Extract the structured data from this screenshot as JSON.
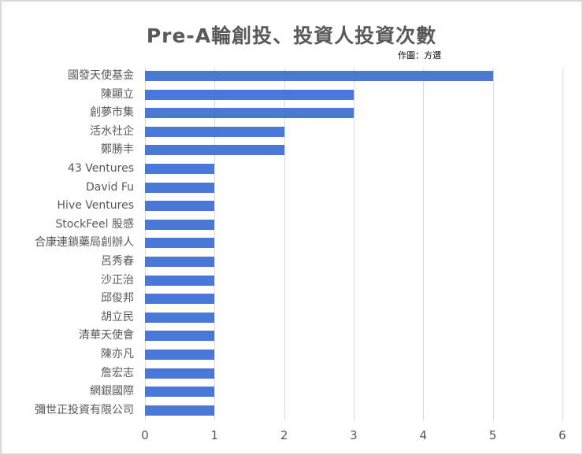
{
  "title": "Pre-A輪創投、投資人投資次數",
  "credit": "作圖：方選",
  "bar_color": "#4a78d6",
  "chart_data": {
    "type": "bar",
    "orientation": "horizontal",
    "title": "Pre-A輪創投、投資人投資次數",
    "subtitle": "作圖：方選",
    "xlabel": "",
    "ylabel": "",
    "xlim": [
      0,
      6
    ],
    "x_ticks": [
      "0",
      "1",
      "2",
      "3",
      "4",
      "5",
      "6"
    ],
    "grid": true,
    "legend": "none",
    "categories": [
      "國發天使基金",
      "陳顯立",
      "創夢市集",
      "活水社企",
      "鄭勝丰",
      "43 Ventures",
      "David Fu",
      "Hive Ventures",
      "StockFeel 股感",
      "合康連鎖藥局創辦人",
      "呂秀春",
      "沙正治",
      "邱俊邦",
      "胡立民",
      "清華天使會",
      "陳亦凡",
      "詹宏志",
      "網銀國際",
      "彌世正投資有限公司"
    ],
    "values": [
      5,
      3,
      3,
      2,
      2,
      1,
      1,
      1,
      1,
      1,
      1,
      1,
      1,
      1,
      1,
      1,
      1,
      1,
      1
    ]
  }
}
